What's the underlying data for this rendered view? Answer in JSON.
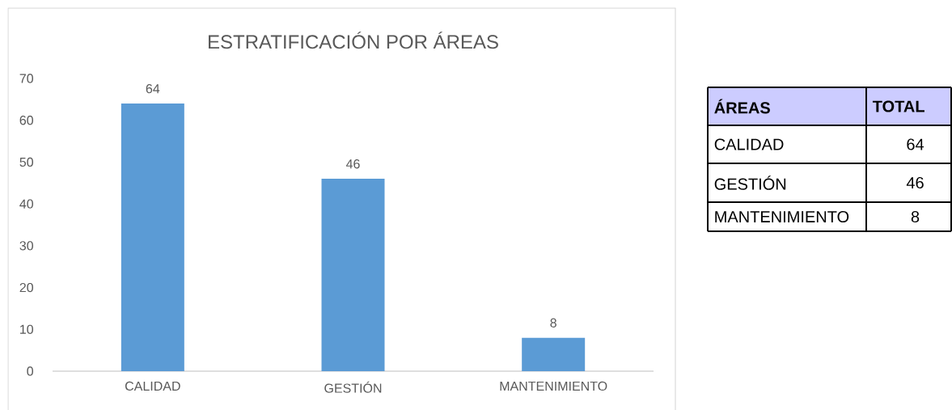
{
  "chart_data": [
    {
      "type": "bar",
      "title": "ESTRATIFICACIÓN POR ÁREAS",
      "categories": [
        "CALIDAD",
        "GESTIÓN",
        "MANTENIMIENTO"
      ],
      "values": [
        64,
        46,
        8
      ],
      "color": "#5b9bd5",
      "ylim": [
        0,
        70
      ],
      "yticks": [
        0,
        10,
        20,
        30,
        40,
        50,
        60,
        70
      ],
      "data_labels": true
    },
    {
      "type": "other",
      "annotations": [
        "ÁREAS",
        "TOTAL",
        "CALIDAD",
        "64",
        "GESTIÓN",
        "46",
        "MANTENIMIENTO",
        "8"
      ]
    }
  ]
}
